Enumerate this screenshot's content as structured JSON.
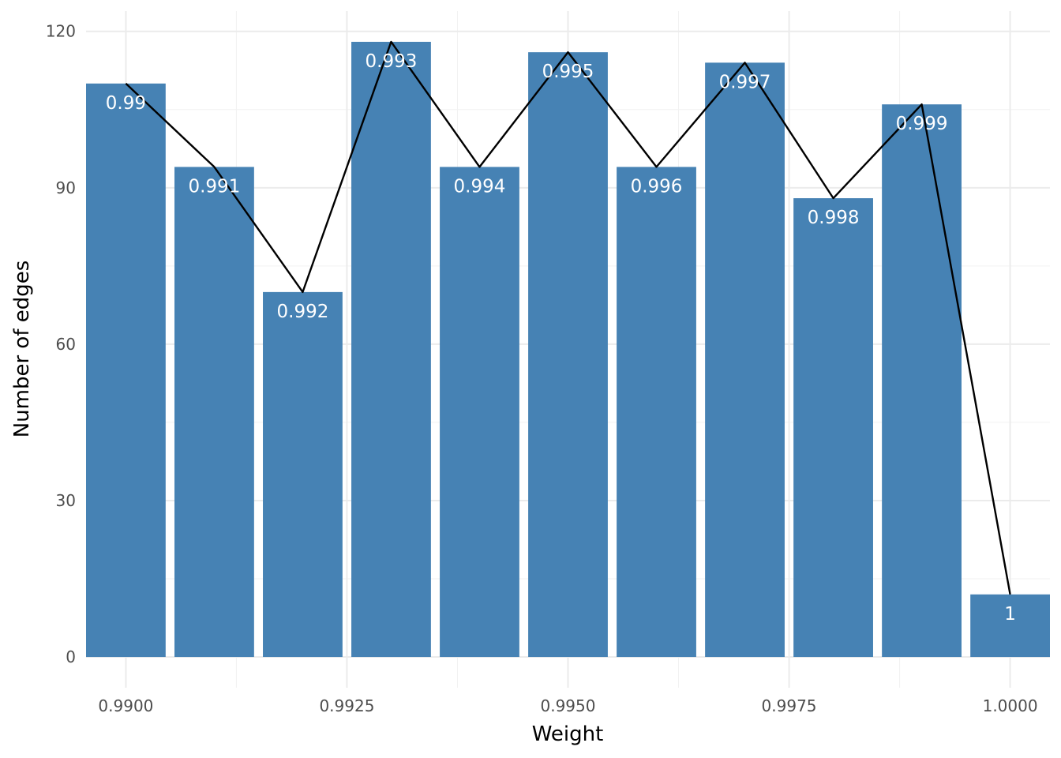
{
  "chart_data": {
    "type": "bar",
    "xlabel": "Weight",
    "ylabel": "Number of edges",
    "x": [
      0.99,
      0.991,
      0.992,
      0.993,
      0.994,
      0.995,
      0.996,
      0.997,
      0.998,
      0.999,
      1.0
    ],
    "values": [
      110,
      94,
      70,
      118,
      94,
      116,
      94,
      114,
      88,
      106,
      12
    ],
    "bar_labels": [
      "0.99",
      "0.991",
      "0.992",
      "0.993",
      "0.994",
      "0.995",
      "0.996",
      "0.997",
      "0.998",
      "0.999",
      "1"
    ],
    "overlay_line": true,
    "xlim": [
      0.98955,
      1.00045
    ],
    "ylim": [
      -5.9,
      123.9
    ],
    "x_ticks": [
      0.99,
      0.9925,
      0.995,
      0.9975,
      1.0
    ],
    "x_tick_labels": [
      "0.9900",
      "0.9925",
      "0.9950",
      "0.9975",
      "1.0000"
    ],
    "y_ticks": [
      0,
      30,
      60,
      90,
      120
    ],
    "y_tick_labels": [
      "0",
      "30",
      "60",
      "90",
      "120"
    ],
    "bar_color": "#4682b4",
    "line_color": "#000000",
    "grid": true,
    "legend": "none"
  }
}
